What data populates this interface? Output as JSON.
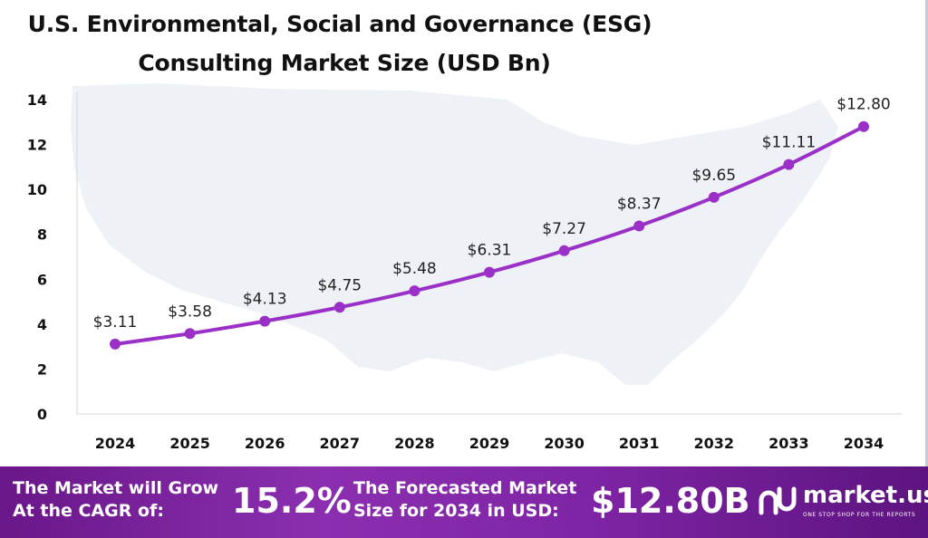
{
  "title_line1": "U.S. Environmental, Social and Governance (ESG)",
  "title_line2": "Consulting Market Size (USD Bn)",
  "chart_data": {
    "type": "line",
    "title": "U.S. Environmental, Social and Governance (ESG) Consulting Market Size (USD Bn)",
    "categories": [
      "2024",
      "2025",
      "2026",
      "2027",
      "2028",
      "2029",
      "2030",
      "2031",
      "2032",
      "2033",
      "2034"
    ],
    "values": [
      3.11,
      3.58,
      4.13,
      4.75,
      5.48,
      6.31,
      7.27,
      8.37,
      9.65,
      11.11,
      12.8
    ],
    "data_labels": [
      "$3.11",
      "$3.58",
      "$4.13",
      "$4.75",
      "$5.48",
      "$6.31",
      "$7.27",
      "$8.37",
      "$9.65",
      "$11.11",
      "$12.80"
    ],
    "yticks": [
      0,
      2,
      4,
      6,
      8,
      10,
      12,
      14
    ],
    "ylim": [
      0,
      14
    ],
    "xlabel": "",
    "ylabel": "",
    "grid": false,
    "line_color": "#9b30c8",
    "label_color": "#222222"
  },
  "footer": {
    "cagr_label": "The Market will Grow At the CAGR of:",
    "cagr_value": "15.2%",
    "forecast_label": "The Forecasted Market Size for 2034 in USD:",
    "forecast_value": "$12.80B",
    "brand_name": "market.us",
    "brand_tagline": "ONE STOP SHOP FOR THE REPORTS"
  }
}
